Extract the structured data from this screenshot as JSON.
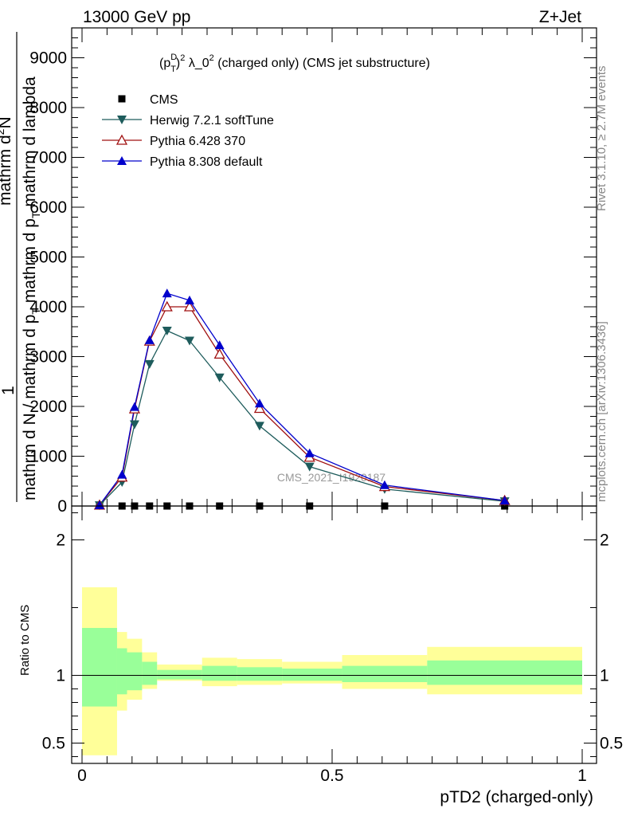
{
  "header": {
    "left": "13000 GeV pp",
    "right": "Z+Jet"
  },
  "side_labels": {
    "rivet": "Rivet 3.1.10, ≥ 2.7M events",
    "mcplots": "mcplots.cern.ch [arXiv:1306.3436]"
  },
  "chart_data": [
    {
      "type": "line",
      "title_parts": {
        "p": "(p",
        "sup_d": "D",
        "sub_t": "T",
        "close": ")",
        "sup_2": "2",
        "lambda": " λ_0",
        "sup_2b": "2",
        "rest": " (charged only) (CMS jet substructure)"
      },
      "ylabel_parts": {
        "one": "1",
        "den1": "mathrm d N / mathrm d p",
        "den1_sub": "T",
        "den2": " mathrm d p",
        "den2_sub": "T",
        "den3": " mathrm d lambda",
        "num1": "mathrm d",
        "num1_sup": "2",
        "num2": "N"
      },
      "watermark": "CMS_2021_I1920187",
      "xlim": [
        0,
        1
      ],
      "ylim": [
        0,
        9600
      ],
      "yticks": [
        0,
        1000,
        2000,
        3000,
        4000,
        5000,
        6000,
        7000,
        8000,
        9000
      ],
      "ytick_labels": [
        "0",
        "1000",
        "2000",
        "3000",
        "4000",
        "5000",
        "6000",
        "7000",
        "8000",
        "9000"
      ],
      "legend_position": "top-left",
      "series": [
        {
          "name": "CMS",
          "color": "#000000",
          "marker": "square",
          "x": [
            0.035,
            0.08,
            0.105,
            0.135,
            0.17,
            0.215,
            0.275,
            0.355,
            0.455,
            0.605,
            0.845
          ],
          "values": [
            0,
            0,
            0,
            0,
            0,
            0,
            0,
            0,
            0,
            0,
            0
          ]
        },
        {
          "name": "Herwig 7.2.1 softTune",
          "color": "#1e5c5c",
          "marker": "triangle-down",
          "x": [
            0.035,
            0.08,
            0.105,
            0.135,
            0.17,
            0.215,
            0.275,
            0.355,
            0.455,
            0.605,
            0.845
          ],
          "values": [
            15,
            480,
            1640,
            2850,
            3520,
            3320,
            2580,
            1610,
            790,
            340,
            95
          ]
        },
        {
          "name": "Pythia 6.428 370",
          "color": "#a01010",
          "marker": "triangle-up-open",
          "x": [
            0.035,
            0.08,
            0.105,
            0.135,
            0.17,
            0.215,
            0.275,
            0.355,
            0.455,
            0.605,
            0.845
          ],
          "values": [
            18,
            580,
            1950,
            3310,
            4000,
            4000,
            3050,
            1960,
            980,
            390,
            110
          ]
        },
        {
          "name": "Pythia 8.308 default",
          "color": "#0000cc",
          "marker": "triangle-up",
          "x": [
            0.035,
            0.08,
            0.105,
            0.135,
            0.17,
            0.215,
            0.275,
            0.355,
            0.455,
            0.605,
            0.845
          ],
          "values": [
            18,
            630,
            1990,
            3330,
            4270,
            4130,
            3230,
            2060,
            1060,
            420,
            110
          ]
        }
      ]
    },
    {
      "type": "area",
      "ylabel": "Ratio to CMS",
      "xlabel": "pTD2 (charged-only)",
      "xlim": [
        0,
        1
      ],
      "ylim": [
        0.35,
        2.25
      ],
      "xticks": [
        0,
        0.5,
        1
      ],
      "xtick_labels": [
        "0",
        "0.5",
        "1"
      ],
      "yticks": [
        0.5,
        1,
        2
      ],
      "ytick_labels": [
        "0.5",
        "1",
        "2"
      ],
      "reference_line": 1,
      "inner_band_color": "#99ff99",
      "outer_band_color": "#ffff99",
      "bins": [
        {
          "lo": 0.0,
          "hi": 0.07,
          "inner": [
            0.77,
            1.35
          ],
          "outer": [
            0.41,
            1.65
          ]
        },
        {
          "lo": 0.07,
          "hi": 0.09,
          "inner": [
            0.86,
            1.2
          ],
          "outer": [
            0.74,
            1.32
          ]
        },
        {
          "lo": 0.09,
          "hi": 0.12,
          "inner": [
            0.89,
            1.17
          ],
          "outer": [
            0.82,
            1.27
          ]
        },
        {
          "lo": 0.12,
          "hi": 0.15,
          "inner": [
            0.93,
            1.1
          ],
          "outer": [
            0.9,
            1.17
          ]
        },
        {
          "lo": 0.15,
          "hi": 0.24,
          "inner": [
            0.97,
            1.04
          ],
          "outer": [
            0.96,
            1.08
          ]
        },
        {
          "lo": 0.24,
          "hi": 0.31,
          "inner": [
            0.96,
            1.07
          ],
          "outer": [
            0.92,
            1.13
          ]
        },
        {
          "lo": 0.31,
          "hi": 0.4,
          "inner": [
            0.96,
            1.06
          ],
          "outer": [
            0.93,
            1.12
          ]
        },
        {
          "lo": 0.4,
          "hi": 0.52,
          "inner": [
            0.96,
            1.05
          ],
          "outer": [
            0.94,
            1.1
          ]
        },
        {
          "lo": 0.52,
          "hi": 0.69,
          "inner": [
            0.95,
            1.07
          ],
          "outer": [
            0.9,
            1.15
          ]
        },
        {
          "lo": 0.69,
          "hi": 1.0,
          "inner": [
            0.93,
            1.11
          ],
          "outer": [
            0.86,
            1.21
          ]
        }
      ]
    }
  ]
}
